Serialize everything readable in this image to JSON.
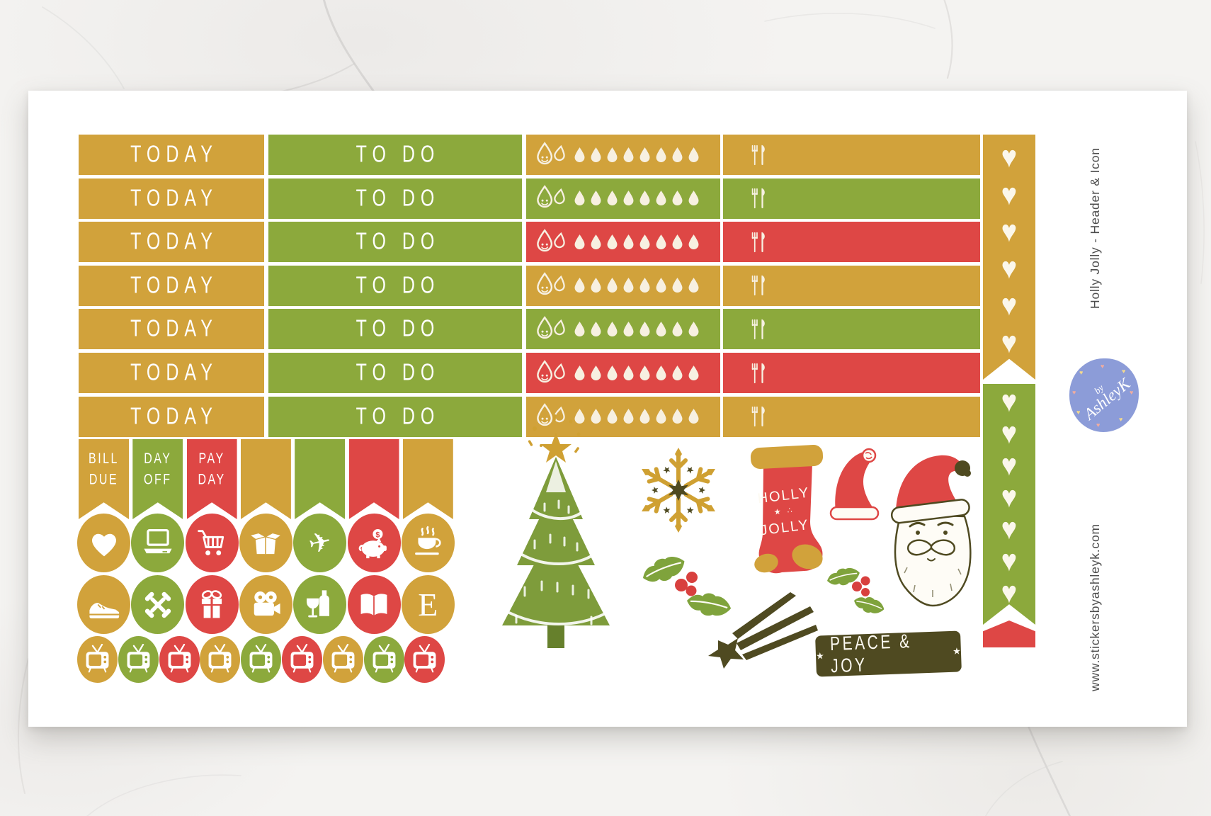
{
  "palette": {
    "gold": "#D1A23B",
    "green": "#8CA93C",
    "red": "#DE4745",
    "cream": "#F7F0E1",
    "dark_olive": "#4F4A21",
    "tree_green": "#7E9C3B",
    "holly_green": "#7FA33C",
    "berry_red": "#D8403E",
    "logo_blue": "#8C9CD8",
    "sheet_white": "#FFFFFF",
    "marble_gray": "#F4F3F1",
    "side_text_gray": "#4D4D4D"
  },
  "header_rows": [
    {
      "today": "TODAY",
      "today_color": "gold",
      "todo": "TO DO",
      "todo_color": "green",
      "tracker_color": "gold"
    },
    {
      "today": "TODAY",
      "today_color": "gold",
      "todo": "TO DO",
      "todo_color": "green",
      "tracker_color": "green"
    },
    {
      "today": "TODAY",
      "today_color": "gold",
      "todo": "TO DO",
      "todo_color": "green",
      "tracker_color": "red"
    },
    {
      "today": "TODAY",
      "today_color": "gold",
      "todo": "TO DO",
      "todo_color": "green",
      "tracker_color": "gold"
    },
    {
      "today": "TODAY",
      "today_color": "gold",
      "todo": "TO DO",
      "todo_color": "green",
      "tracker_color": "green"
    },
    {
      "today": "TODAY",
      "today_color": "gold",
      "todo": "TO DO",
      "todo_color": "green",
      "tracker_color": "red"
    },
    {
      "today": "TODAY",
      "today_color": "gold",
      "todo": "TO DO",
      "todo_color": "green",
      "tracker_color": "gold"
    }
  ],
  "water_tracker": {
    "droplets": 8
  },
  "flags": [
    {
      "label": "BILL DUE",
      "color": "gold"
    },
    {
      "label": "DAY OFF",
      "color": "green"
    },
    {
      "label": "PAY DAY",
      "color": "red"
    },
    {
      "label": "",
      "color": "gold"
    },
    {
      "label": "",
      "color": "green"
    },
    {
      "label": "",
      "color": "red"
    },
    {
      "label": "",
      "color": "gold"
    }
  ],
  "icon_rows": [
    [
      {
        "icon": "heart",
        "color": "gold"
      },
      {
        "icon": "laptop",
        "color": "green"
      },
      {
        "icon": "shopping-cart",
        "color": "red"
      },
      {
        "icon": "box",
        "color": "gold"
      },
      {
        "icon": "airplane",
        "color": "green"
      },
      {
        "icon": "piggy-bank",
        "color": "red"
      },
      {
        "icon": "coffee",
        "color": "gold"
      }
    ],
    [
      {
        "icon": "sneaker",
        "color": "gold"
      },
      {
        "icon": "dumbbell",
        "color": "green"
      },
      {
        "icon": "gift",
        "color": "red"
      },
      {
        "icon": "movie-camera",
        "color": "gold"
      },
      {
        "icon": "wine",
        "color": "green"
      },
      {
        "icon": "book",
        "color": "red"
      },
      {
        "icon": "etsy-e",
        "color": "gold"
      }
    ]
  ],
  "tv_row": {
    "colors": [
      "gold",
      "green",
      "red",
      "gold",
      "green",
      "red",
      "gold",
      "green",
      "red"
    ]
  },
  "heart_flags": [
    {
      "color": "gold",
      "hearts": 6
    },
    {
      "color": "green",
      "hearts": 7
    }
  ],
  "etsy_letter": "E",
  "stocking": {
    "line1": "HOLLY",
    "decor": "★ ∴",
    "line2": "JOLLY"
  },
  "stamp": {
    "star_left": "★",
    "label": "PEACE & JOY",
    "star_right": "★"
  },
  "side": {
    "title": "Holly Jolly - Header & Icon",
    "website": "www.stickersbyashleyk.com"
  },
  "logo": {
    "prefix": "by",
    "name": "AshleyK"
  }
}
